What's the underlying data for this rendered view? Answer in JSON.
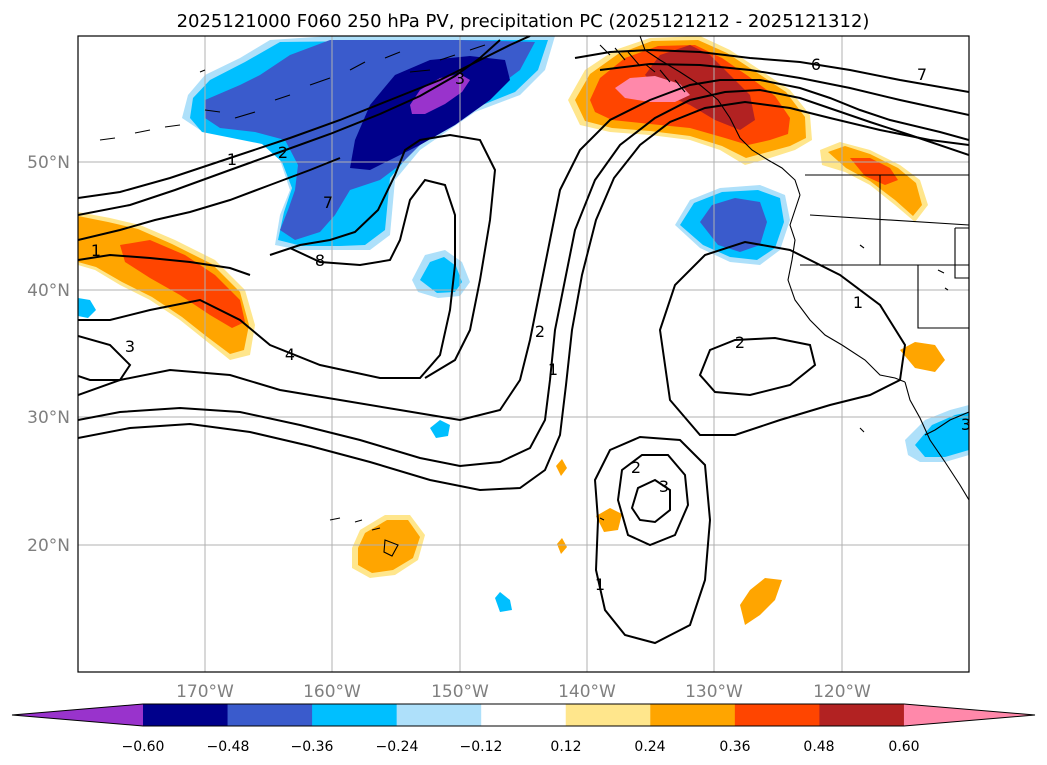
{
  "title": "2025121000 F060 250 hPa PV, precipitation PC (2025121212 - 2025121312)",
  "map": {
    "lon_ticks": [
      "170°W",
      "160°W",
      "150°W",
      "140°W",
      "130°W",
      "120°W"
    ],
    "lat_ticks": [
      "50°N",
      "40°N",
      "30°N",
      "20°N"
    ],
    "contour_labels": [
      "1",
      "2",
      "7",
      "8",
      "4",
      "3",
      "3",
      "1",
      "6",
      "7",
      "2",
      "1",
      "2",
      "1",
      "2",
      "3",
      "1",
      "3"
    ]
  },
  "colorbar": {
    "tick_labels": [
      "−0.60",
      "−0.48",
      "−0.36",
      "−0.24",
      "−0.12",
      "0.12",
      "0.24",
      "0.36",
      "0.48",
      "0.60"
    ],
    "colors": [
      "#9933cc",
      "#00008b",
      "#3a5bcc",
      "#00bfff",
      "#aee0fa",
      "#ffffff",
      "#ffe68c",
      "#ffa500",
      "#ff4500",
      "#b22222",
      "#ff88aa"
    ]
  }
}
